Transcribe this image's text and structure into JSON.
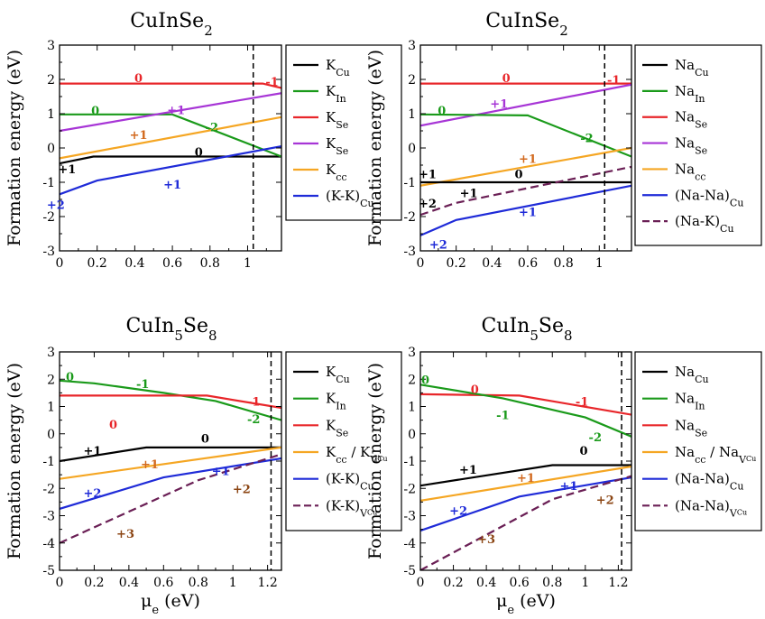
{
  "figure": {
    "y_axis_label": "Formation energy (eV)",
    "x_axis_label": "μe (eV)"
  },
  "colors": {
    "black": "#000000",
    "green": "#1a9a1a",
    "red": "#e8262a",
    "purple": "#a735d6",
    "orange": "#f5a623",
    "blue": "#1f2bd8",
    "maroon": "#6a1f55",
    "brown": "#8b4513",
    "label_orange": "#d2691e"
  },
  "chart_data": [
    {
      "type": "line",
      "title": "CuInSe2",
      "title_base": "CuInSe",
      "title_sub": "2",
      "xlim": [
        0,
        1.18
      ],
      "ylim": [
        -3,
        3
      ],
      "xticks": [
        0,
        0.2,
        0.4,
        0.6,
        0.8,
        1
      ],
      "yticks": [
        -3,
        -2,
        -1,
        0,
        1,
        2,
        3
      ],
      "vline": 1.03,
      "legend": [
        {
          "base": "K",
          "sub": "Cu",
          "color": "black",
          "dash": false
        },
        {
          "base": "K",
          "sub": "In",
          "color": "green",
          "dash": false
        },
        {
          "base": "K",
          "sub": "Se",
          "color": "red",
          "dash": false
        },
        {
          "base": "K",
          "sub": "Se",
          "color": "purple",
          "dash": false
        },
        {
          "base": "K",
          "sub": "cc",
          "color": "orange",
          "dash": false
        },
        {
          "base": "(K-K)",
          "sub": "Cu",
          "color": "blue",
          "dash": false
        }
      ],
      "series": [
        {
          "color": "black",
          "dash": false,
          "x": [
            0,
            0.18,
            1.18
          ],
          "y": [
            -0.45,
            -0.25,
            -0.25
          ]
        },
        {
          "color": "green",
          "dash": false,
          "x": [
            0,
            0.6,
            1.18
          ],
          "y": [
            0.98,
            0.98,
            -0.25
          ]
        },
        {
          "color": "red",
          "dash": false,
          "x": [
            0,
            1.08,
            1.18
          ],
          "y": [
            1.88,
            1.88,
            1.75
          ]
        },
        {
          "color": "purple",
          "dash": false,
          "x": [
            0,
            1.18
          ],
          "y": [
            0.5,
            1.6
          ]
        },
        {
          "color": "orange",
          "dash": false,
          "x": [
            0,
            1.18
          ],
          "y": [
            -0.3,
            0.9
          ]
        },
        {
          "color": "blue",
          "dash": false,
          "x": [
            0,
            0.2,
            1.18
          ],
          "y": [
            -1.35,
            -0.95,
            0.05
          ]
        }
      ],
      "annotations": [
        {
          "text": "0",
          "x": 0.42,
          "y": 2.05,
          "color": "red"
        },
        {
          "text": "-1",
          "x": 1.13,
          "y": 1.95,
          "color": "red"
        },
        {
          "text": "0",
          "x": 0.19,
          "y": 1.1,
          "color": "green"
        },
        {
          "text": "+1",
          "x": 0.62,
          "y": 1.12,
          "color": "purple"
        },
        {
          "text": "-2",
          "x": 0.81,
          "y": 0.62,
          "color": "green"
        },
        {
          "text": "+1",
          "x": 0.42,
          "y": 0.4,
          "color": "label_orange"
        },
        {
          "text": "0",
          "x": 0.74,
          "y": -0.1,
          "color": "black"
        },
        {
          "text": "+1",
          "x": 0.04,
          "y": -0.6,
          "color": "black"
        },
        {
          "text": "+1",
          "x": 0.6,
          "y": -1.05,
          "color": "blue"
        },
        {
          "text": "+2",
          "x": -0.02,
          "y": -1.65,
          "color": "blue"
        }
      ]
    },
    {
      "type": "line",
      "title": "CuInSe2",
      "title_base": "CuInSe",
      "title_sub": "2",
      "xlim": [
        0,
        1.18
      ],
      "ylim": [
        -3,
        3
      ],
      "xticks": [
        0,
        0.2,
        0.4,
        0.6,
        0.8,
        1
      ],
      "yticks": [
        -3,
        -2,
        -1,
        0,
        1,
        2,
        3
      ],
      "vline": 1.03,
      "legend": [
        {
          "base": "Na",
          "sub": "Cu",
          "color": "black",
          "dash": false
        },
        {
          "base": "Na",
          "sub": "In",
          "color": "green",
          "dash": false
        },
        {
          "base": "Na",
          "sub": "Se",
          "color": "red",
          "dash": false
        },
        {
          "base": "Na",
          "sub": "Se",
          "color": "purple",
          "dash": false
        },
        {
          "base": "Na",
          "sub": "cc",
          "color": "orange",
          "dash": false
        },
        {
          "base": "(Na-Na)",
          "sub": "Cu",
          "color": "blue",
          "dash": false
        },
        {
          "base": "(Na-K)",
          "sub": "Cu",
          "color": "maroon",
          "dash": true
        }
      ],
      "series": [
        {
          "color": "red",
          "dash": false,
          "x": [
            0,
            1.18
          ],
          "y": [
            1.88,
            1.88
          ]
        },
        {
          "color": "purple",
          "dash": false,
          "x": [
            0,
            1.18
          ],
          "y": [
            0.65,
            1.85
          ]
        },
        {
          "color": "green",
          "dash": false,
          "x": [
            0,
            0.6,
            1.18
          ],
          "y": [
            0.98,
            0.95,
            -0.25
          ]
        },
        {
          "color": "orange",
          "dash": false,
          "x": [
            0,
            1.18
          ],
          "y": [
            -1.1,
            0.0
          ]
        },
        {
          "color": "black",
          "dash": false,
          "x": [
            0,
            1.18
          ],
          "y": [
            -1.0,
            -1.0
          ]
        },
        {
          "color": "maroon",
          "dash": true,
          "x": [
            0,
            0.2,
            1.18
          ],
          "y": [
            -1.95,
            -1.6,
            -0.55
          ]
        },
        {
          "color": "blue",
          "dash": false,
          "x": [
            0,
            0.2,
            1.18
          ],
          "y": [
            -2.55,
            -2.1,
            -1.1
          ]
        }
      ],
      "annotations": [
        {
          "text": "0",
          "x": 0.48,
          "y": 2.05,
          "color": "red"
        },
        {
          "text": "-1",
          "x": 1.08,
          "y": 2.0,
          "color": "red"
        },
        {
          "text": "+1",
          "x": 0.44,
          "y": 1.3,
          "color": "purple"
        },
        {
          "text": "0",
          "x": 0.12,
          "y": 1.1,
          "color": "green"
        },
        {
          "text": "-2",
          "x": 0.93,
          "y": 0.3,
          "color": "green"
        },
        {
          "text": "+1",
          "x": 0.6,
          "y": -0.3,
          "color": "label_orange"
        },
        {
          "text": "+1",
          "x": 0.04,
          "y": -0.75,
          "color": "black"
        },
        {
          "text": "0",
          "x": 0.55,
          "y": -0.75,
          "color": "black"
        },
        {
          "text": "+1",
          "x": 0.27,
          "y": -1.3,
          "color": "black"
        },
        {
          "text": "+2",
          "x": 0.04,
          "y": -1.6,
          "color": "black"
        },
        {
          "text": "+1",
          "x": 0.6,
          "y": -1.85,
          "color": "blue"
        },
        {
          "text": "+2",
          "x": 0.1,
          "y": -2.8,
          "color": "blue"
        }
      ]
    },
    {
      "type": "line",
      "title": "CuIn5Se8",
      "title_base": "CuIn",
      "title_sub": "5",
      "title_base2": "Se",
      "title_sub2": "8",
      "xlim": [
        0,
        1.28
      ],
      "ylim": [
        -5,
        3
      ],
      "xticks": [
        0,
        0.2,
        0.4,
        0.6,
        0.8,
        1,
        1.2
      ],
      "yticks": [
        -5,
        -4,
        -3,
        -2,
        -1,
        0,
        1,
        2,
        3
      ],
      "vline": 1.22,
      "legend": [
        {
          "base": "K",
          "sub": "Cu",
          "color": "black",
          "dash": false
        },
        {
          "base": "K",
          "sub": "In",
          "color": "green",
          "dash": false
        },
        {
          "base": "K",
          "sub": "Se",
          "color": "red",
          "dash": false
        },
        {
          "base": "K",
          "sub": "cc",
          "base2": " / K",
          "sub2": "V",
          "subsub2": "Cu",
          "color": "orange",
          "dash": false
        },
        {
          "base": "(K-K)",
          "sub": "Cu",
          "color": "blue",
          "dash": false
        },
        {
          "base": "(K-K)",
          "sub": "V",
          "subsub": "Cu",
          "color": "maroon",
          "dash": true
        }
      ],
      "series": [
        {
          "color": "green",
          "dash": false,
          "x": [
            0,
            0.2,
            0.6,
            0.9,
            1.28
          ],
          "y": [
            1.95,
            1.85,
            1.5,
            1.2,
            0.5
          ]
        },
        {
          "color": "red",
          "dash": false,
          "x": [
            0,
            0.85,
            1.28
          ],
          "y": [
            1.4,
            1.4,
            0.95
          ]
        },
        {
          "color": "black",
          "dash": false,
          "x": [
            0,
            0.5,
            1.28
          ],
          "y": [
            -1.0,
            -0.5,
            -0.5
          ]
        },
        {
          "color": "orange",
          "dash": false,
          "x": [
            0,
            1.28
          ],
          "y": [
            -1.65,
            -0.5
          ]
        },
        {
          "color": "blue",
          "dash": false,
          "x": [
            0,
            0.6,
            1.28
          ],
          "y": [
            -2.75,
            -1.6,
            -0.9
          ]
        },
        {
          "color": "maroon",
          "dash": true,
          "x": [
            0,
            0.8,
            1.28
          ],
          "y": [
            -4.0,
            -1.7,
            -0.75
          ]
        }
      ],
      "annotations": [
        {
          "text": "0",
          "x": 0.06,
          "y": 2.1,
          "color": "green"
        },
        {
          "text": "-1",
          "x": 0.48,
          "y": 1.85,
          "color": "green"
        },
        {
          "text": "-1",
          "x": 1.12,
          "y": 1.2,
          "color": "red"
        },
        {
          "text": "0",
          "x": 0.31,
          "y": 0.35,
          "color": "red"
        },
        {
          "text": "-2",
          "x": 1.12,
          "y": 0.55,
          "color": "green"
        },
        {
          "text": "0",
          "x": 0.84,
          "y": -0.15,
          "color": "black"
        },
        {
          "text": "+1",
          "x": 0.19,
          "y": -0.6,
          "color": "black"
        },
        {
          "text": "+1",
          "x": 0.52,
          "y": -1.1,
          "color": "label_orange"
        },
        {
          "text": "+1",
          "x": 0.93,
          "y": -1.35,
          "color": "blue"
        },
        {
          "text": "+2",
          "x": 0.19,
          "y": -2.15,
          "color": "blue"
        },
        {
          "text": "+2",
          "x": 1.05,
          "y": -2.0,
          "color": "brown"
        },
        {
          "text": "+3",
          "x": 0.38,
          "y": -3.65,
          "color": "brown"
        }
      ]
    },
    {
      "type": "line",
      "title": "CuIn5Se8",
      "title_base": "CuIn",
      "title_sub": "5",
      "title_base2": "Se",
      "title_sub2": "8",
      "xlim": [
        0,
        1.28
      ],
      "ylim": [
        -5,
        3
      ],
      "xticks": [
        0,
        0.2,
        0.4,
        0.6,
        0.8,
        1,
        1.2
      ],
      "yticks": [
        -5,
        -4,
        -3,
        -2,
        -1,
        0,
        1,
        2,
        3
      ],
      "vline": 1.22,
      "legend": [
        {
          "base": "Na",
          "sub": "Cu",
          "color": "black",
          "dash": false
        },
        {
          "base": "Na",
          "sub": "In",
          "color": "green",
          "dash": false
        },
        {
          "base": "Na",
          "sub": "Se",
          "color": "red",
          "dash": false
        },
        {
          "base": "Na",
          "sub": "cc",
          "base2": " / Na",
          "sub2": "V",
          "subsub2": "Cu",
          "color": "orange",
          "dash": false
        },
        {
          "base": "(Na-Na)",
          "sub": "Cu",
          "color": "blue",
          "dash": false
        },
        {
          "base": "(Na-Na)",
          "sub": "V",
          "subsub": "Cu",
          "color": "maroon",
          "dash": true
        }
      ],
      "series": [
        {
          "color": "red",
          "dash": false,
          "x": [
            0,
            0.6,
            1.28
          ],
          "y": [
            1.45,
            1.4,
            0.7
          ]
        },
        {
          "color": "green",
          "dash": false,
          "x": [
            0,
            0.5,
            1.0,
            1.28
          ],
          "y": [
            1.8,
            1.3,
            0.6,
            -0.1
          ]
        },
        {
          "color": "black",
          "dash": false,
          "x": [
            0,
            0.8,
            1.28
          ],
          "y": [
            -1.9,
            -1.15,
            -1.15
          ]
        },
        {
          "color": "orange",
          "dash": false,
          "x": [
            0,
            1.28
          ],
          "y": [
            -2.45,
            -1.2
          ]
        },
        {
          "color": "blue",
          "dash": false,
          "x": [
            0,
            0.6,
            1.28
          ],
          "y": [
            -3.55,
            -2.3,
            -1.6
          ]
        },
        {
          "color": "maroon",
          "dash": true,
          "x": [
            0,
            0.8,
            1.28
          ],
          "y": [
            -5.0,
            -2.4,
            -1.55
          ]
        }
      ],
      "annotations": [
        {
          "text": "0",
          "x": 0.03,
          "y": 2.0,
          "color": "green"
        },
        {
          "text": "0",
          "x": 0.33,
          "y": 1.65,
          "color": "red"
        },
        {
          "text": "-1",
          "x": 0.98,
          "y": 1.2,
          "color": "red"
        },
        {
          "text": "-1",
          "x": 0.5,
          "y": 0.7,
          "color": "green"
        },
        {
          "text": "-2",
          "x": 1.06,
          "y": -0.1,
          "color": "green"
        },
        {
          "text": "0",
          "x": 0.99,
          "y": -0.6,
          "color": "black"
        },
        {
          "text": "+1",
          "x": 0.29,
          "y": -1.3,
          "color": "black"
        },
        {
          "text": "+1",
          "x": 0.64,
          "y": -1.6,
          "color": "label_orange"
        },
        {
          "text": "+1",
          "x": 0.9,
          "y": -1.9,
          "color": "blue"
        },
        {
          "text": "+2",
          "x": 1.12,
          "y": -2.4,
          "color": "brown"
        },
        {
          "text": "+2",
          "x": 0.23,
          "y": -2.8,
          "color": "blue"
        },
        {
          "text": "+3",
          "x": 0.4,
          "y": -3.85,
          "color": "brown"
        }
      ]
    }
  ]
}
